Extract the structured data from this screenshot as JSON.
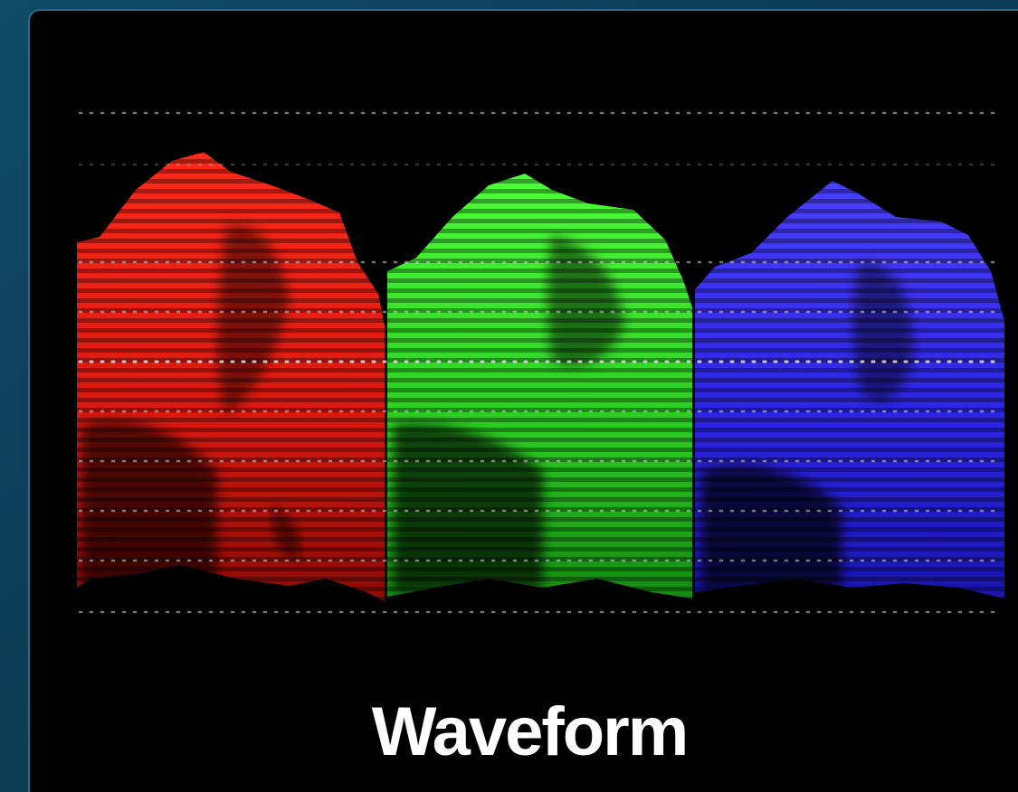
{
  "caption": "Waveform"
}
